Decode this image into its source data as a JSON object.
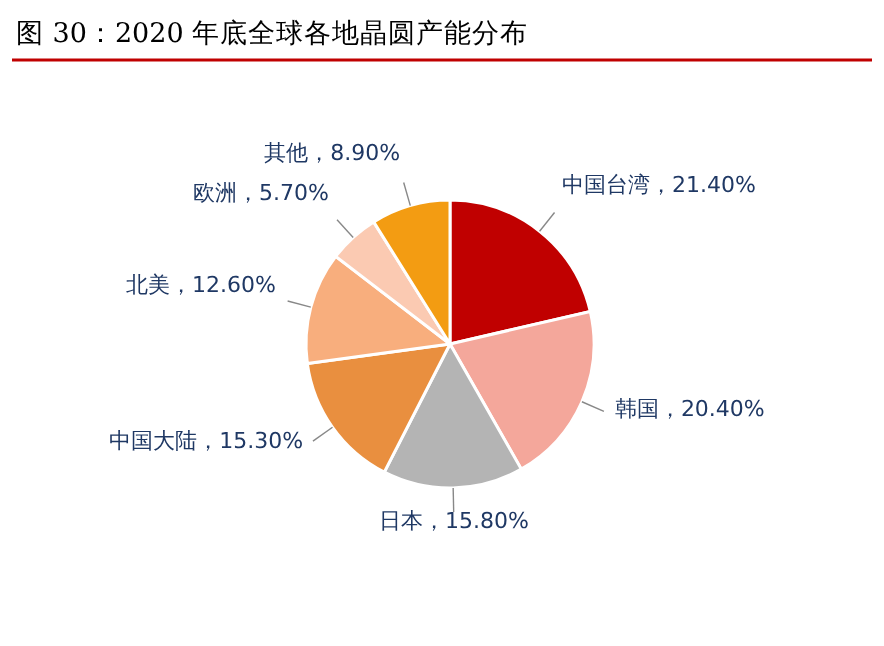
{
  "chart_data": {
    "type": "pie",
    "title": "图 30：2020 年底全球各地晶圆产能分布",
    "categories": [
      "中国台湾",
      "韩国",
      "日本",
      "中国大陆",
      "北美",
      "欧洲",
      "其他"
    ],
    "values": [
      21.4,
      20.4,
      15.8,
      15.3,
      12.6,
      5.7,
      8.9
    ],
    "value_labels": [
      "21.40%",
      "20.40%",
      "15.80%",
      "15.30%",
      "12.60%",
      "5.70%",
      "8.90%"
    ],
    "colors": [
      "#c00000",
      "#f4a79b",
      "#b4b4b4",
      "#e98f3f",
      "#f8ae7d",
      "#fbcab2",
      "#f39c12"
    ]
  }
}
